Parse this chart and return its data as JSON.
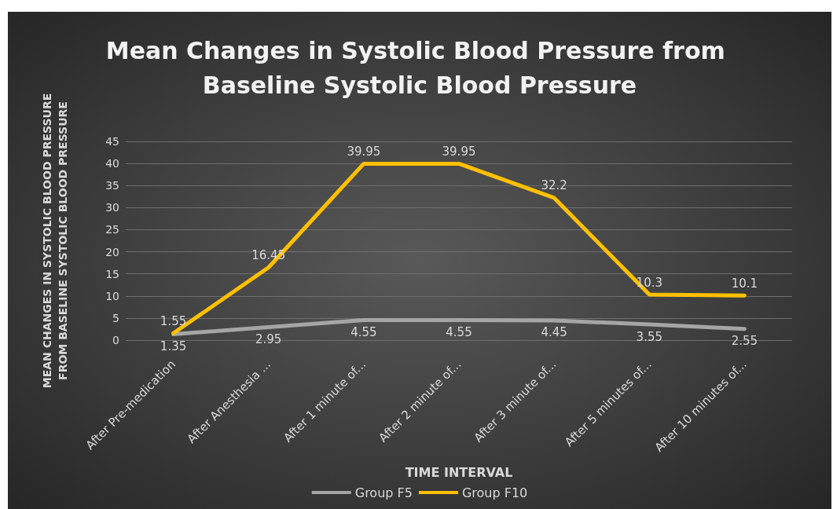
{
  "chart_data": {
    "type": "line",
    "title": "Mean Changes in Systolic Blood Pressure from Baseline Systolic Blood Pressure",
    "xlabel": "TIME INTERVAL",
    "ylabel": "MEAN CHANGES IN SYSTOLIC BLOOD PRESSURE FROM BASELINE SYSTOLIC BLOOD PRESSURE",
    "categories": [
      "After Pre-medication",
      "After Anesthesia ...",
      "After 1 minute of...",
      "After 2 minute of...",
      "After 3 minute of...",
      "After 5 minutes of...",
      "After 10 minutes of..."
    ],
    "series": [
      {
        "name": "Group F5",
        "color": "#a5a5a5",
        "values": [
          1.35,
          2.95,
          4.55,
          4.55,
          4.45,
          3.55,
          2.55
        ]
      },
      {
        "name": "Group F10",
        "color": "#ffc000",
        "values": [
          1.55,
          16.45,
          39.95,
          39.95,
          32.2,
          10.3,
          10.1
        ]
      }
    ],
    "ylim": [
      0,
      45
    ],
    "yticks": [
      0,
      5,
      10,
      15,
      20,
      25,
      30,
      35,
      40,
      45
    ],
    "grid": "y",
    "legend": "bottom",
    "marker": "none",
    "line_style": "solid",
    "data_labels": true
  }
}
